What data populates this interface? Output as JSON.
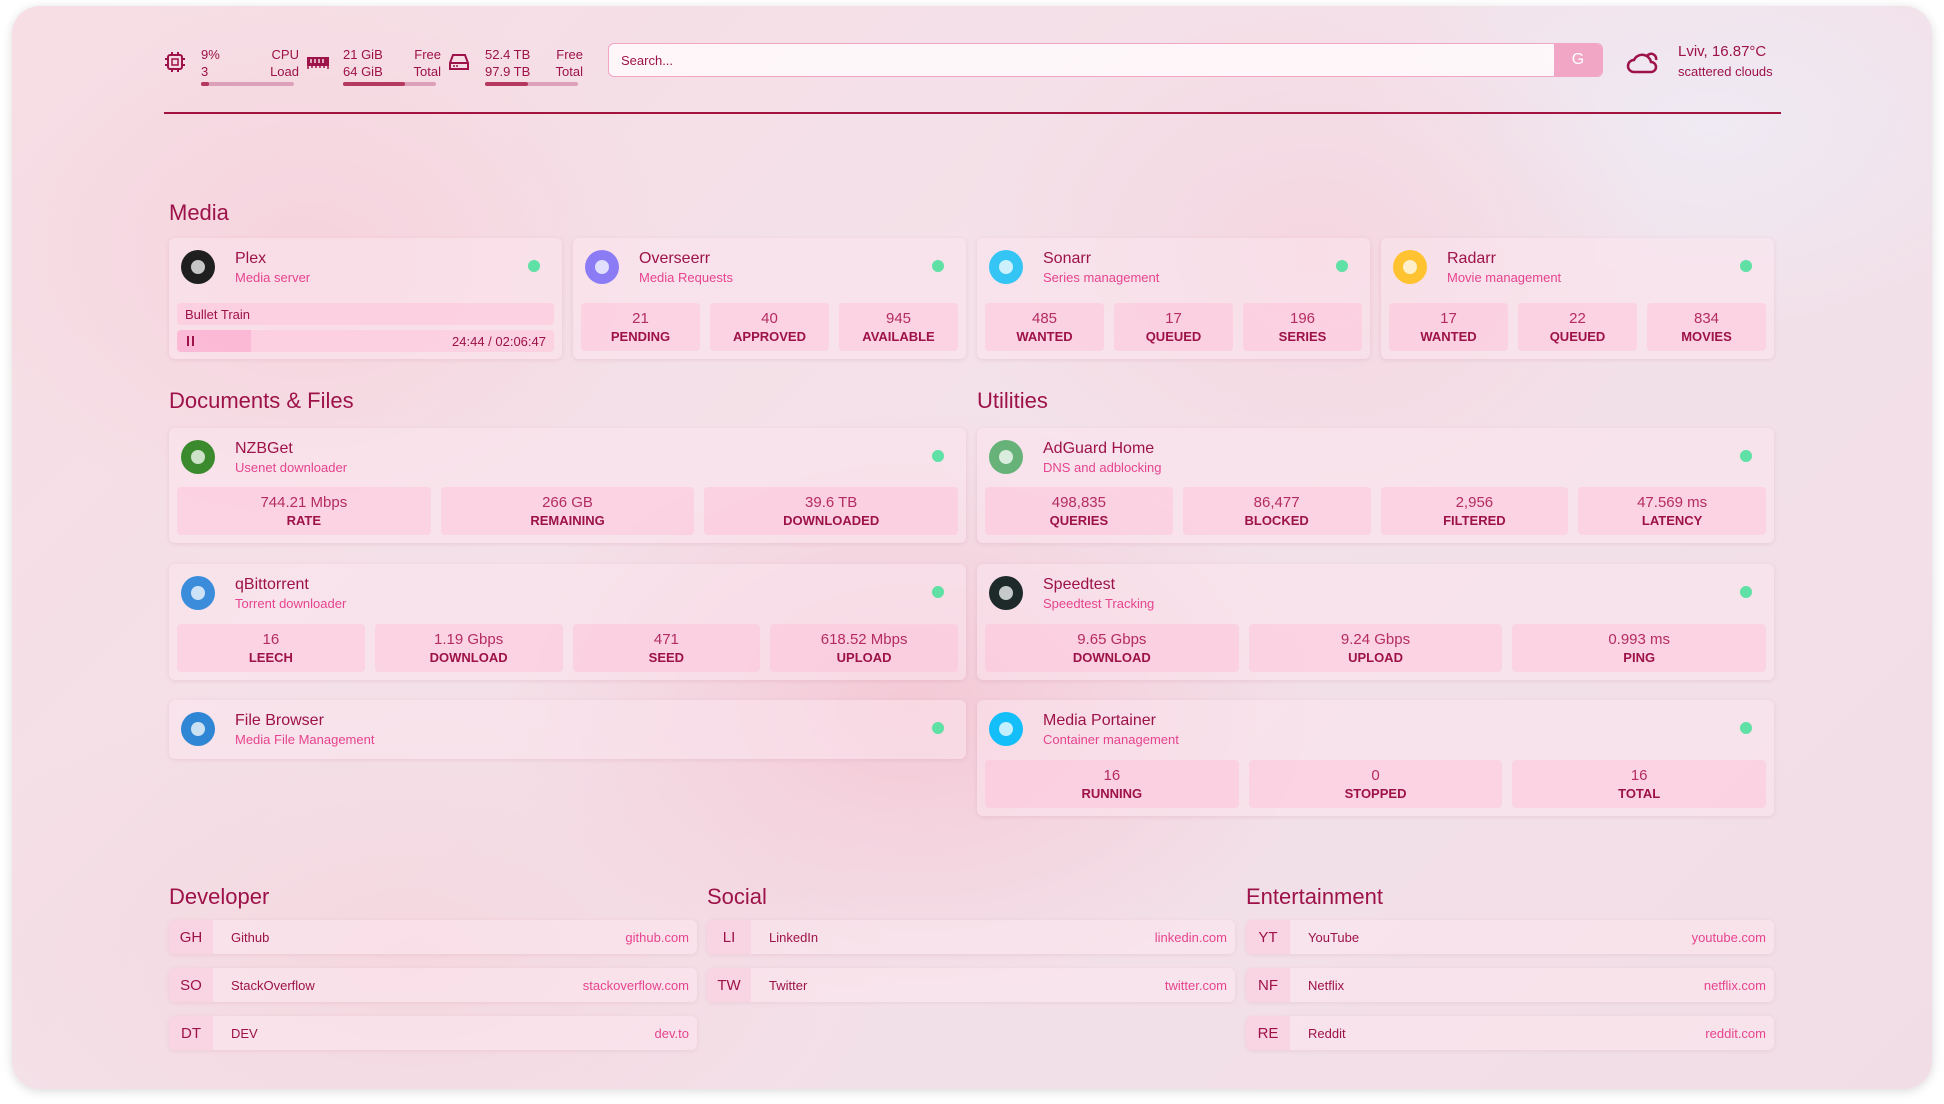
{
  "colors": {
    "primary": "#9d1248",
    "accent": "#e6448e",
    "status_online": "#5fe0a4"
  },
  "header": {
    "cpu": {
      "icon": "cpu-icon",
      "usage": "9%",
      "load": "3",
      "label1": "CPU",
      "label2": "Load",
      "percent": 9
    },
    "memory": {
      "icon": "memory-icon",
      "free": "21 GiB",
      "total": "64 GiB",
      "label1": "Free",
      "label2": "Total",
      "percent": 67
    },
    "disk": {
      "icon": "disk-icon",
      "free": "52.4 TB",
      "total": "97.9 TB",
      "label1": "Free",
      "label2": "Total",
      "percent": 46
    },
    "search": {
      "placeholder": "Search...",
      "button": "G"
    },
    "weather": {
      "icon": "cloud-sun-icon",
      "location": "Lviv, 16.87°C",
      "condition": "scattered clouds"
    }
  },
  "sections": [
    {
      "title": "Media"
    },
    {
      "title": "Documents & Files"
    },
    {
      "title": "Utilities"
    }
  ],
  "services": [
    {
      "name": "Plex",
      "desc": "Media server",
      "icon": "plex-icon",
      "color": "#1f1f1f",
      "now_playing": {
        "title": "Bullet Train",
        "time": "24:44 / 02:06:47",
        "progress": 19.5
      }
    },
    {
      "name": "Overseerr",
      "desc": "Media Requests",
      "icon": "overseerr-icon",
      "color": "#8b7cf6",
      "stats": [
        {
          "v": "21",
          "l": "PENDING"
        },
        {
          "v": "40",
          "l": "APPROVED"
        },
        {
          "v": "945",
          "l": "AVAILABLE"
        }
      ]
    },
    {
      "name": "Sonarr",
      "desc": "Series management",
      "icon": "sonarr-icon",
      "color": "#35c5f4",
      "stats": [
        {
          "v": "485",
          "l": "WANTED"
        },
        {
          "v": "17",
          "l": "QUEUED"
        },
        {
          "v": "196",
          "l": "SERIES"
        }
      ]
    },
    {
      "name": "Radarr",
      "desc": "Movie management",
      "icon": "radarr-icon",
      "color": "#ffc230",
      "stats": [
        {
          "v": "17",
          "l": "WANTED"
        },
        {
          "v": "22",
          "l": "QUEUED"
        },
        {
          "v": "834",
          "l": "MOVIES"
        }
      ]
    },
    {
      "name": "NZBGet",
      "desc": "Usenet downloader",
      "icon": "nzbget-icon",
      "color": "#3c8a2e",
      "stats": [
        {
          "v": "744.21 Mbps",
          "l": "RATE"
        },
        {
          "v": "266 GB",
          "l": "REMAINING"
        },
        {
          "v": "39.6 TB",
          "l": "DOWNLOADED"
        }
      ]
    },
    {
      "name": "qBittorrent",
      "desc": "Torrent downloader",
      "icon": "qbittorrent-icon",
      "color": "#3b8ddc",
      "stats": [
        {
          "v": "16",
          "l": "LEECH"
        },
        {
          "v": "1.19 Gbps",
          "l": "DOWNLOAD"
        },
        {
          "v": "471",
          "l": "SEED"
        },
        {
          "v": "618.52 Mbps",
          "l": "UPLOAD"
        }
      ]
    },
    {
      "name": "File Browser",
      "desc": "Media File Management",
      "icon": "filebrowser-icon",
      "color": "#2f86d4"
    },
    {
      "name": "AdGuard Home",
      "desc": "DNS and adblocking",
      "icon": "adguard-icon",
      "color": "#67b279",
      "stats": [
        {
          "v": "498,835",
          "l": "QUERIES"
        },
        {
          "v": "86,477",
          "l": "BLOCKED"
        },
        {
          "v": "2,956",
          "l": "FILTERED"
        },
        {
          "v": "47.569 ms",
          "l": "LATENCY"
        }
      ]
    },
    {
      "name": "Speedtest",
      "desc": "Speedtest Tracking",
      "icon": "speedtest-icon",
      "color": "#1e2a2a",
      "stats": [
        {
          "v": "9.65 Gbps",
          "l": "DOWNLOAD"
        },
        {
          "v": "9.24 Gbps",
          "l": "UPLOAD"
        },
        {
          "v": "0.993 ms",
          "l": "PING"
        }
      ]
    },
    {
      "name": "Media Portainer",
      "desc": "Container management",
      "icon": "portainer-icon",
      "color": "#13bef9",
      "stats": [
        {
          "v": "16",
          "l": "RUNNING"
        },
        {
          "v": "0",
          "l": "STOPPED"
        },
        {
          "v": "16",
          "l": "TOTAL"
        }
      ]
    }
  ],
  "bookmarks": [
    {
      "title": "Developer",
      "items": [
        {
          "abbr": "GH",
          "name": "Github",
          "url": "github.com"
        },
        {
          "abbr": "SO",
          "name": "StackOverflow",
          "url": "stackoverflow.com"
        },
        {
          "abbr": "DT",
          "name": "DEV",
          "url": "dev.to"
        }
      ]
    },
    {
      "title": "Social",
      "items": [
        {
          "abbr": "LI",
          "name": "LinkedIn",
          "url": "linkedin.com"
        },
        {
          "abbr": "TW",
          "name": "Twitter",
          "url": "twitter.com"
        }
      ]
    },
    {
      "title": "Entertainment",
      "items": [
        {
          "abbr": "YT",
          "name": "YouTube",
          "url": "youtube.com"
        },
        {
          "abbr": "NF",
          "name": "Netflix",
          "url": "netflix.com"
        },
        {
          "abbr": "RE",
          "name": "Reddit",
          "url": "reddit.com"
        }
      ]
    }
  ]
}
